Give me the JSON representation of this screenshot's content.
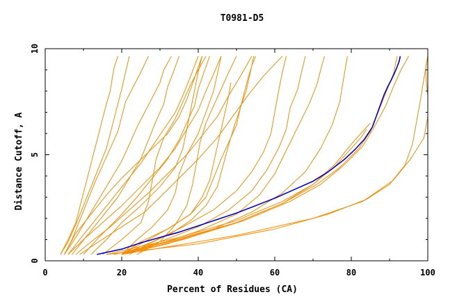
{
  "chart_data": {
    "type": "line",
    "title": "T0981-D5",
    "xlabel": "Percent of Residues (CA)",
    "ylabel": "Distance Cutoff, A",
    "xlim": [
      0,
      100
    ],
    "ylim": [
      0,
      10
    ],
    "x_ticks": [
      {
        "value": 0,
        "label": "0"
      },
      {
        "value": 20,
        "label": "20"
      },
      {
        "value": 40,
        "label": "40"
      },
      {
        "value": 60,
        "label": "60"
      },
      {
        "value": 80,
        "label": "80"
      },
      {
        "value": 100,
        "label": "100"
      }
    ],
    "y_ticks": [
      {
        "value": 0,
        "label": "0"
      },
      {
        "value": 5,
        "label": "5"
      },
      {
        "value": 10,
        "label": "10"
      }
    ],
    "grid": false,
    "legend": "none",
    "highlight_color": "#0000cc",
    "other_color": "#f28c00",
    "highlight_series": {
      "x": [
        13.5,
        20,
        25,
        30,
        35,
        40,
        45,
        50,
        55,
        60,
        65,
        70,
        74,
        78,
        81,
        83.5,
        85.5,
        86.5,
        87.5,
        88.5,
        89.5,
        90.5,
        91.3,
        92,
        92.5,
        92.8
      ],
      "y": [
        0.3,
        0.55,
        0.85,
        1.1,
        1.35,
        1.65,
        1.95,
        2.25,
        2.6,
        2.95,
        3.35,
        3.75,
        4.2,
        4.75,
        5.25,
        5.75,
        6.3,
        6.8,
        7.3,
        7.8,
        8.2,
        8.55,
        8.85,
        9.15,
        9.4,
        9.65
      ]
    },
    "other_series": [
      {
        "x": [
          4,
          6,
          8,
          9,
          10,
          11,
          12,
          13,
          14,
          15,
          16,
          17,
          17.5,
          18,
          19
        ],
        "y": [
          0.3,
          1.0,
          1.8,
          2.5,
          3.2,
          3.9,
          4.6,
          5.3,
          6.0,
          6.7,
          7.4,
          8.0,
          8.6,
          9.1,
          9.65
        ]
      },
      {
        "x": [
          4,
          6,
          8,
          10,
          12,
          14,
          16,
          17,
          18,
          19,
          20,
          21,
          22
        ],
        "y": [
          0.3,
          0.9,
          1.7,
          2.6,
          3.5,
          4.4,
          5.3,
          6.0,
          6.7,
          7.4,
          8.1,
          8.9,
          9.65
        ]
      },
      {
        "x": [
          5,
          7,
          9,
          11,
          13,
          15,
          17,
          19,
          20,
          21,
          23,
          25,
          27
        ],
        "y": [
          0.3,
          1.0,
          1.9,
          2.8,
          3.7,
          4.5,
          5.3,
          6.1,
          6.8,
          7.5,
          8.2,
          8.9,
          9.65
        ]
      },
      {
        "x": [
          5,
          8,
          11,
          14,
          17,
          20,
          22,
          24,
          26,
          28,
          30,
          31,
          33
        ],
        "y": [
          0.3,
          1.1,
          2.0,
          2.9,
          3.8,
          4.7,
          5.5,
          6.3,
          7.0,
          7.7,
          8.4,
          9.0,
          9.65
        ]
      },
      {
        "x": [
          6,
          9,
          13,
          17,
          21,
          25,
          28,
          31,
          34,
          36,
          38,
          40
        ],
        "y": [
          0.3,
          1.0,
          1.9,
          2.8,
          3.7,
          4.6,
          5.4,
          6.2,
          7.0,
          7.8,
          8.7,
          9.65
        ]
      },
      {
        "x": [
          6,
          10,
          15,
          20,
          25,
          30,
          34,
          37,
          40,
          42,
          44,
          46
        ],
        "y": [
          0.3,
          1.0,
          1.8,
          2.6,
          3.5,
          4.4,
          5.3,
          6.2,
          7.1,
          8.0,
          8.8,
          9.65
        ]
      },
      {
        "x": [
          8,
          12,
          17,
          22,
          27,
          32,
          37,
          41,
          45,
          48,
          51,
          54
        ],
        "y": [
          0.3,
          0.9,
          1.6,
          2.4,
          3.2,
          4.1,
          5.0,
          5.9,
          6.8,
          7.8,
          8.7,
          9.65
        ]
      },
      {
        "x": [
          9,
          14,
          20,
          26,
          30,
          35,
          40,
          45,
          49,
          53,
          57,
          62
        ],
        "y": [
          0.3,
          0.9,
          1.6,
          2.3,
          3.0,
          3.9,
          4.8,
          5.8,
          6.8,
          7.8,
          8.7,
          9.65
        ]
      },
      {
        "x": [
          15,
          20,
          25,
          27,
          28,
          29,
          31,
          34,
          36,
          38,
          40,
          42
        ],
        "y": [
          0.3,
          1.0,
          1.8,
          2.8,
          3.8,
          4.8,
          5.8,
          6.7,
          7.5,
          8.3,
          9.0,
          9.65
        ]
      },
      {
        "x": [
          20,
          24,
          28,
          32,
          34,
          35,
          37,
          40,
          42,
          44,
          45,
          46
        ],
        "y": [
          0.3,
          1.0,
          1.6,
          2.4,
          3.2,
          4.1,
          5.0,
          6.0,
          7.0,
          8.0,
          8.8,
          9.65
        ]
      },
      {
        "x": [
          20,
          25,
          32,
          38,
          41,
          43,
          44,
          45,
          46,
          47,
          48,
          48.5
        ],
        "y": [
          0.3,
          0.9,
          1.5,
          2.2,
          3.0,
          3.8,
          4.6,
          5.4,
          6.2,
          7.0,
          7.8,
          8.4
        ]
      },
      {
        "x": [
          22,
          27,
          33,
          38,
          42,
          45,
          46.5,
          48,
          49.5,
          51,
          52,
          53,
          54,
          55
        ],
        "y": [
          0.3,
          0.8,
          1.3,
          1.9,
          2.6,
          3.5,
          4.5,
          5.5,
          6.4,
          7.2,
          7.9,
          8.6,
          9.2,
          9.65
        ]
      },
      {
        "x": [
          20,
          26,
          32,
          38,
          42,
          44,
          46,
          48,
          50,
          51,
          52.5,
          53.5,
          54.5
        ],
        "y": [
          0.3,
          0.9,
          1.5,
          2.2,
          3.0,
          3.9,
          4.8,
          5.6,
          6.4,
          7.2,
          8.0,
          8.8,
          9.65
        ]
      },
      {
        "x": [
          20,
          28,
          36,
          44,
          50,
          54,
          57,
          59,
          60,
          61,
          62,
          63
        ],
        "y": [
          0.3,
          0.9,
          1.6,
          2.4,
          3.3,
          4.2,
          5.1,
          6.0,
          7.0,
          8.0,
          8.9,
          9.65
        ]
      },
      {
        "x": [
          20,
          30,
          40,
          48,
          54,
          58,
          61,
          63,
          64,
          66,
          67,
          68
        ],
        "y": [
          0.3,
          0.9,
          1.6,
          2.4,
          3.3,
          4.3,
          5.3,
          6.2,
          7.2,
          8.1,
          8.9,
          9.65
        ]
      },
      {
        "x": [
          20,
          30,
          40,
          50,
          56,
          60,
          63,
          66,
          69,
          71,
          72,
          73
        ],
        "y": [
          0.3,
          0.8,
          1.4,
          2.2,
          3.1,
          4.1,
          5.2,
          6.3,
          7.4,
          8.3,
          9.0,
          9.65
        ]
      },
      {
        "x": [
          20,
          32,
          44,
          54,
          62,
          68,
          72,
          75,
          77,
          78,
          79
        ],
        "y": [
          0.3,
          0.8,
          1.5,
          2.3,
          3.2,
          4.2,
          5.3,
          6.4,
          7.5,
          8.6,
          9.65
        ]
      },
      {
        "x": [
          18,
          35,
          50,
          62,
          70,
          76,
          80,
          83,
          85
        ],
        "y": [
          0.3,
          1.0,
          1.8,
          2.7,
          3.6,
          4.6,
          5.5,
          6.1,
          6.5
        ]
      },
      {
        "x": [
          16,
          35,
          50,
          62,
          70,
          76,
          80,
          82.5,
          84
        ],
        "y": [
          0.3,
          1.1,
          1.9,
          2.8,
          3.6,
          4.5,
          5.3,
          5.8,
          6.2
        ]
      },
      {
        "x": [
          20,
          36,
          52,
          64,
          72,
          78,
          83,
          86,
          89,
          91,
          93,
          95
        ],
        "y": [
          0.3,
          1.0,
          1.9,
          2.8,
          3.6,
          4.5,
          5.4,
          6.3,
          7.3,
          8.2,
          9.0,
          9.65
        ]
      },
      {
        "x": [
          18,
          34,
          50,
          62,
          71,
          77,
          82,
          85,
          87,
          89,
          91,
          92
        ],
        "y": [
          0.3,
          1.0,
          1.8,
          2.7,
          3.6,
          4.4,
          5.3,
          6.1,
          7.0,
          7.9,
          8.8,
          9.65
        ]
      },
      {
        "x": [
          16,
          40,
          60,
          74,
          84,
          90,
          94,
          96,
          97,
          98,
          99,
          100
        ],
        "y": [
          0.3,
          0.8,
          1.5,
          2.2,
          2.9,
          3.6,
          4.5,
          5.5,
          6.5,
          7.5,
          8.6,
          9.65
        ]
      },
      {
        "x": [
          20,
          50,
          70,
          83,
          91,
          95.5,
          99,
          100,
          100,
          99.5,
          99.5,
          100
        ],
        "y": [
          0.3,
          1.2,
          2.0,
          2.8,
          3.8,
          4.8,
          5.8,
          6.8,
          7.8,
          8.6,
          9.2,
          9.65
        ]
      },
      {
        "x": [
          12,
          16,
          20,
          25,
          30,
          34,
          36,
          37,
          38,
          39,
          40,
          41
        ],
        "y": [
          0.3,
          1.0,
          1.8,
          2.6,
          3.5,
          4.4,
          5.3,
          6.2,
          7.1,
          8.0,
          8.9,
          9.65
        ]
      },
      {
        "x": [
          10,
          14,
          19,
          24,
          28,
          32,
          35,
          37,
          39,
          40,
          41.5,
          43
        ],
        "y": [
          0.3,
          1.1,
          2.0,
          3.0,
          3.9,
          4.8,
          5.7,
          6.5,
          7.3,
          8.1,
          8.9,
          9.65
        ]
      },
      {
        "x": [
          7,
          11,
          15,
          19,
          22,
          25,
          27,
          29,
          31,
          32,
          33.5,
          35
        ],
        "y": [
          0.3,
          1.2,
          2.1,
          3.0,
          3.9,
          4.8,
          5.7,
          6.6,
          7.4,
          8.2,
          8.9,
          9.65
        ]
      },
      {
        "x": [
          5,
          8,
          12,
          16,
          20,
          24,
          28,
          32,
          35,
          37,
          39,
          41
        ],
        "y": [
          0.3,
          1.3,
          2.2,
          3.1,
          3.9,
          4.6,
          5.3,
          6.0,
          6.8,
          7.6,
          8.6,
          9.65
        ]
      },
      {
        "x": [
          24,
          30,
          34,
          37,
          38.5,
          39.5,
          40.5,
          42,
          44,
          46,
          48,
          50
        ],
        "y": [
          0.3,
          0.9,
          1.7,
          2.6,
          3.6,
          4.6,
          5.6,
          6.5,
          7.3,
          8.1,
          8.9,
          9.65
        ]
      }
    ]
  }
}
